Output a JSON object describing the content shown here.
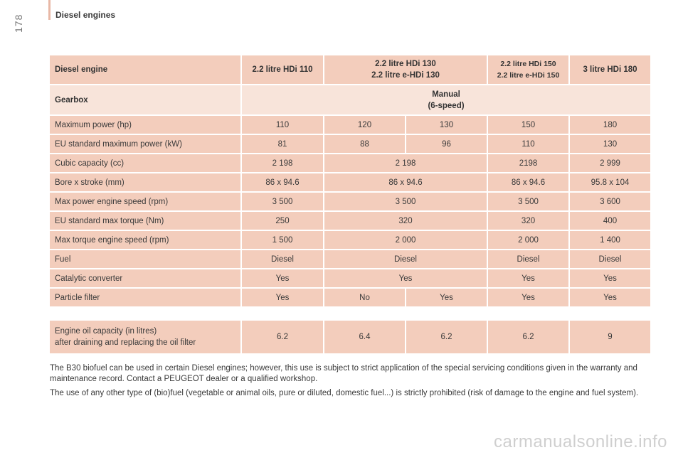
{
  "page": {
    "number": "178",
    "section_title": "Diesel engines",
    "watermark": "carmanualsonline.info"
  },
  "table": {
    "header": {
      "label": "Diesel engine",
      "col1": "2.2 litre HDi 110",
      "col2_line1": "2.2 litre HDi 130",
      "col2_line2": "2.2 litre e-HDi 130",
      "col3_line1": "2.2 litre HDi 150",
      "col3_line2": "2.2 litre e-HDi 150",
      "col4": "3 litre HDi 180"
    },
    "gearbox": {
      "label": "Gearbox",
      "line1": "Manual",
      "line2": "(6-speed)"
    },
    "rows": [
      {
        "label": "Maximum power (hp)",
        "c1": "110",
        "c2a": "120",
        "c2b": "130",
        "c3": "150",
        "c4": "180"
      },
      {
        "label": "EU standard maximum power (kW)",
        "c1": "81",
        "c2a": "88",
        "c2b": "96",
        "c3": "110",
        "c4": "130"
      },
      {
        "label": "Cubic capacity (cc)",
        "c1": "2 198",
        "c2": "2 198",
        "c3": "2198",
        "c4": "2 999"
      },
      {
        "label": "Bore x stroke (mm)",
        "c1": "86 x 94.6",
        "c2": "86 x 94.6",
        "c3": "86 x 94.6",
        "c4": "95.8 x 104"
      },
      {
        "label": "Max power engine speed (rpm)",
        "c1": "3 500",
        "c2": "3 500",
        "c3": "3 500",
        "c4": "3 600"
      },
      {
        "label": "EU standard max torque (Nm)",
        "c1": "250",
        "c2": "320",
        "c3": "320",
        "c4": "400"
      },
      {
        "label": "Max torque engine speed (rpm)",
        "c1": "1 500",
        "c2": "2 000",
        "c3": "2 000",
        "c4": "1 400"
      },
      {
        "label": "Fuel",
        "c1": "Diesel",
        "c2": "Diesel",
        "c3": "Diesel",
        "c4": "Diesel"
      },
      {
        "label": "Catalytic converter",
        "c1": "Yes",
        "c2": "Yes",
        "c3": "Yes",
        "c4": "Yes"
      },
      {
        "label": "Particle filter",
        "c1": "Yes",
        "c2a": "No",
        "c2b": "Yes",
        "c3": "Yes",
        "c4": "Yes"
      }
    ]
  },
  "oil": {
    "label_line1": "Engine oil capacity (in litres)",
    "label_line2": "after draining and replacing the oil filter",
    "c1": "6.2",
    "c2a": "6.4",
    "c2b": "6.2",
    "c3": "6.2",
    "c4": "9"
  },
  "notes": [
    "The B30 biofuel can be used in certain Diesel engines; however, this use is subject to strict application of the special servicing conditions given in the warranty and maintenance record. Contact a PEUGEOT dealer or a qualified workshop.",
    "The use of any other type of (bio)fuel (vegetable or animal oils, pure or diluted, domestic fuel...) is strictly prohibited (risk of damage to the engine and fuel system)."
  ]
}
